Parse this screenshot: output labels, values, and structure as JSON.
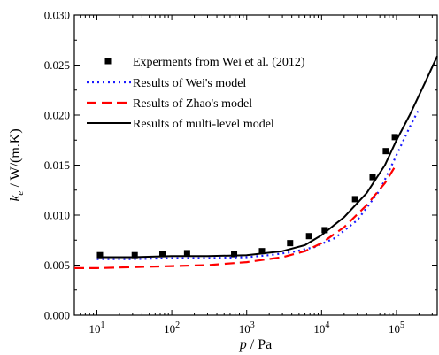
{
  "chart_data": {
    "type": "line",
    "title": "",
    "xlabel": {
      "base": "p",
      "unit": " / Pa"
    },
    "ylabel": {
      "base": "k",
      "sub": "e",
      "unit": " / W/(m.K)"
    },
    "xscale": "log",
    "xlim": [
      5,
      350000
    ],
    "ylim": [
      0.0,
      0.03
    ],
    "grid": false,
    "legend_position": "top-left",
    "x_ticks": [
      {
        "value": 10,
        "exp": "1"
      },
      {
        "value": 100,
        "exp": "2"
      },
      {
        "value": 1000,
        "exp": "3"
      },
      {
        "value": 10000,
        "exp": "4"
      },
      {
        "value": 100000,
        "exp": "5"
      }
    ],
    "y_ticks": [
      {
        "value": 0.0,
        "label": "0.000"
      },
      {
        "value": 0.005,
        "label": "0.005"
      },
      {
        "value": 0.01,
        "label": "0.010"
      },
      {
        "value": 0.015,
        "label": "0.015"
      },
      {
        "value": 0.02,
        "label": "0.020"
      },
      {
        "value": 0.025,
        "label": "0.025"
      },
      {
        "value": 0.03,
        "label": "0.030"
      }
    ],
    "series": [
      {
        "name": "Experments from Wei et al. (2012)",
        "kind": "scatter",
        "color": "#000000",
        "x": [
          11,
          32,
          75,
          160,
          680,
          1600,
          3800,
          6800,
          11000,
          28000,
          48000,
          72000,
          95000
        ],
        "y": [
          0.006,
          0.006,
          0.0061,
          0.0062,
          0.0061,
          0.0064,
          0.0072,
          0.0079,
          0.0085,
          0.0116,
          0.0138,
          0.0164,
          0.0178
        ]
      },
      {
        "name": "Results of Wei's model",
        "kind": "line",
        "style": "dotted",
        "color": "#1a1aff",
        "x": [
          10,
          30,
          100,
          300,
          1000,
          2000,
          4000,
          8000,
          15000,
          30000,
          60000,
          100000,
          150000,
          200000
        ],
        "y": [
          0.0056,
          0.0056,
          0.0057,
          0.0057,
          0.0058,
          0.006,
          0.0063,
          0.0068,
          0.0077,
          0.0095,
          0.0125,
          0.016,
          0.0188,
          0.0206
        ]
      },
      {
        "name": "Results of Zhao's model",
        "kind": "line",
        "style": "dashed",
        "color": "#ff0000",
        "x": [
          5,
          10,
          30,
          100,
          300,
          1000,
          3000,
          6000,
          10000,
          20000,
          40000,
          70000,
          100000
        ],
        "y": [
          0.0047,
          0.0047,
          0.0048,
          0.0049,
          0.005,
          0.0053,
          0.0058,
          0.0064,
          0.0072,
          0.0088,
          0.011,
          0.0132,
          0.0151
        ]
      },
      {
        "name": "Results of multi-level model",
        "kind": "line",
        "style": "solid",
        "color": "#000000",
        "x": [
          10,
          30,
          100,
          300,
          1000,
          3000,
          6000,
          10000,
          20000,
          40000,
          70000,
          100000,
          150000,
          250000,
          350000
        ],
        "y": [
          0.0058,
          0.0058,
          0.0059,
          0.0059,
          0.006,
          0.0064,
          0.007,
          0.008,
          0.0098,
          0.0122,
          0.015,
          0.0175,
          0.02,
          0.0235,
          0.0259
        ]
      }
    ]
  }
}
